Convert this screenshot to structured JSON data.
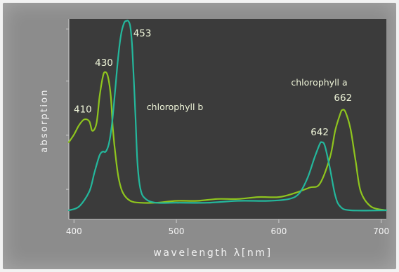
{
  "colors": {
    "panel": "#8c8c8c",
    "plot": "#3b3b3b",
    "chl_a": "#8fc51e",
    "chl_b": "#24b79c",
    "text": "#eef4d8"
  },
  "chart_data": {
    "type": "line",
    "xlabel": "wavelength λ[nm]",
    "ylabel": "absorption",
    "xlim": [
      395,
      705
    ],
    "ylim": [
      0,
      1
    ],
    "xticks": [
      400,
      500,
      600,
      700
    ],
    "grid": false,
    "series": [
      {
        "name": "chlorophyll a",
        "color": "#8fc51e",
        "x": [
          395,
          400,
          405,
          410,
          415,
          418,
          422,
          425,
          428,
          430,
          433,
          436,
          438,
          441,
          444,
          448,
          455,
          465,
          480,
          500,
          520,
          540,
          560,
          580,
          600,
          615,
          630,
          640,
          650,
          655,
          660,
          662,
          665,
          670,
          675,
          680,
          690,
          705
        ],
        "y": [
          0.36,
          0.4,
          0.45,
          0.48,
          0.47,
          0.42,
          0.46,
          0.6,
          0.7,
          0.73,
          0.71,
          0.6,
          0.43,
          0.27,
          0.16,
          0.09,
          0.05,
          0.04,
          0.04,
          0.05,
          0.05,
          0.06,
          0.06,
          0.07,
          0.07,
          0.09,
          0.12,
          0.14,
          0.28,
          0.42,
          0.51,
          0.53,
          0.52,
          0.43,
          0.26,
          0.1,
          0.02,
          0.0
        ]
      },
      {
        "name": "chlorophyll b",
        "color": "#24b79c",
        "x": [
          395,
          405,
          415,
          420,
          425,
          428,
          431,
          434,
          437,
          440,
          443,
          446,
          449,
          451,
          453,
          455,
          457,
          460,
          462,
          465,
          470,
          480,
          500,
          530,
          560,
          590,
          610,
          620,
          628,
          635,
          640,
          642,
          645,
          650,
          655,
          660,
          670,
          705
        ],
        "y": [
          0.0,
          0.02,
          0.1,
          0.2,
          0.29,
          0.31,
          0.31,
          0.35,
          0.45,
          0.62,
          0.8,
          0.93,
          0.99,
          1.0,
          1.0,
          0.97,
          0.85,
          0.5,
          0.25,
          0.11,
          0.06,
          0.04,
          0.04,
          0.04,
          0.05,
          0.05,
          0.06,
          0.09,
          0.17,
          0.28,
          0.35,
          0.36,
          0.34,
          0.22,
          0.08,
          0.02,
          0.0,
          0.0
        ]
      }
    ],
    "annotations": [
      {
        "text": "410",
        "x": 410,
        "y": 0.48
      },
      {
        "text": "430",
        "x": 430,
        "y": 0.73
      },
      {
        "text": "453",
        "x": 453,
        "y": 1.0
      },
      {
        "text": "642",
        "x": 642,
        "y": 0.36
      },
      {
        "text": "662",
        "x": 662,
        "y": 0.53
      },
      {
        "text": "chlorophyll a",
        "x": 612,
        "y": 0.66
      },
      {
        "text": "chlorophyll b",
        "x": 471,
        "y": 0.53
      }
    ]
  }
}
